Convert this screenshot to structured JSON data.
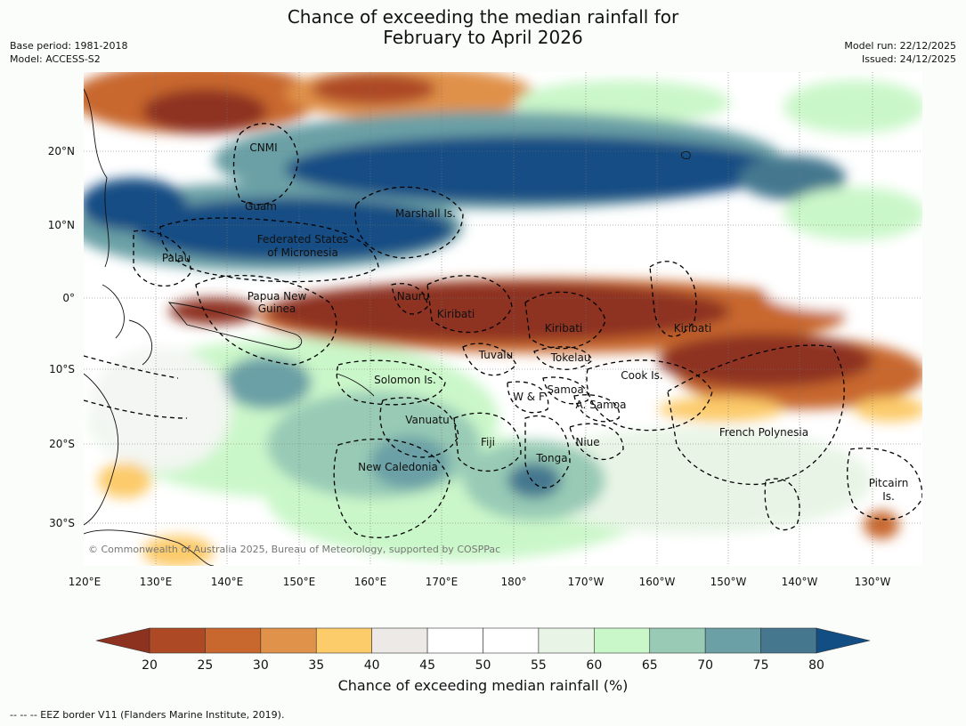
{
  "title": {
    "line1": "Chance of exceeding the median rainfall for",
    "line2": "February to April 2026"
  },
  "meta": {
    "base_period": "Base period: 1981-2018",
    "model": "Model: ACCESS-S2",
    "model_run": "Model run: 22/12/2025",
    "issued": "Issued: 24/12/2025"
  },
  "map": {
    "lat_labels": [
      "20°N",
      "10°N",
      "0°",
      "10°S",
      "20°S",
      "30°S"
    ],
    "lon_labels": [
      "120°E",
      "130°E",
      "140°E",
      "150°E",
      "160°E",
      "170°E",
      "180°",
      "170°W",
      "160°W",
      "150°W",
      "140°W",
      "130°W"
    ],
    "places": [
      "CNMI",
      "Guam",
      "Marshall Is.",
      "Federated States",
      "of Micronesia",
      "Palau",
      "Papua New",
      "Guinea",
      "Nauru",
      "Kiribati",
      "Kiribati",
      "Kiribati",
      "Tuvalu",
      "Tokelau",
      "Solomon Is.",
      "Cook Is.",
      "Samoa",
      "W & F",
      "A. Samoa",
      "Vanuatu",
      "Fiji",
      "Niue",
      "Tonga",
      "French Polynesia",
      "New Caledonia",
      "Pitcairn",
      "Is."
    ],
    "copyright": "© Commonwealth of Australia 2025, Bureau of Meteorology, supported by COSPPac"
  },
  "colorbar": {
    "ticks": [
      "20",
      "25",
      "30",
      "35",
      "40",
      "45",
      "50",
      "55",
      "60",
      "65",
      "70",
      "75",
      "80"
    ],
    "colors": [
      "#8e3220",
      "#ad4a25",
      "#c8682f",
      "#e0914a",
      "#fccb6a",
      "#ece9e6",
      "#ffffff",
      "#ffffff",
      "#e8f5e6",
      "#caf7c9",
      "#98cab6",
      "#6aa0a6",
      "#45788f",
      "#124d84"
    ],
    "label": "Chance of exceeding median rainfall (%)"
  },
  "footer": "-- -- -- EEZ border V11 (Flanders Marine Institute, 2019)."
}
